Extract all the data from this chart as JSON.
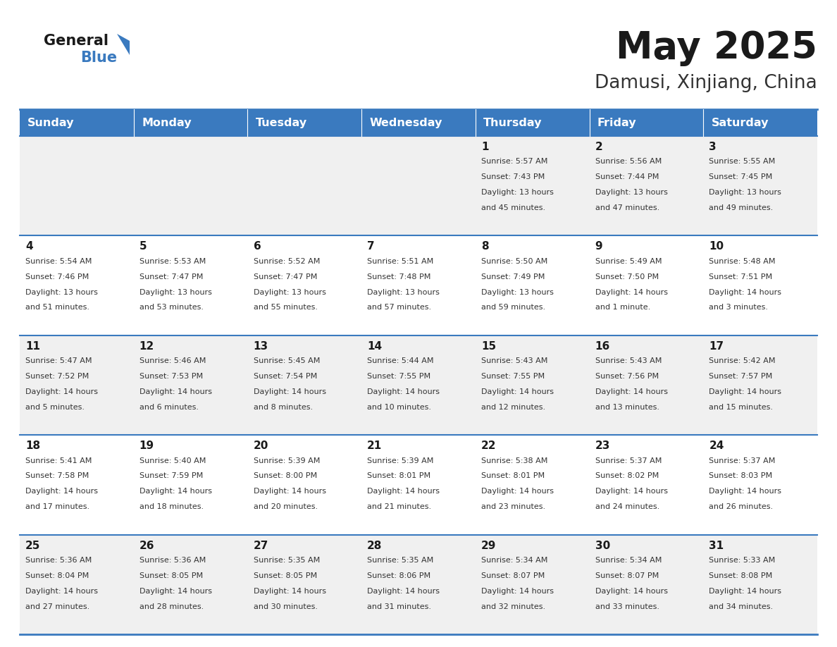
{
  "title": "May 2025",
  "subtitle": "Damusi, Xinjiang, China",
  "header_bg": "#3a7abf",
  "header_text": "#ffffff",
  "row_bg_light": "#f0f0f0",
  "row_bg_white": "#ffffff",
  "border_color": "#3a7abf",
  "day_headers": [
    "Sunday",
    "Monday",
    "Tuesday",
    "Wednesday",
    "Thursday",
    "Friday",
    "Saturday"
  ],
  "title_color": "#1a1a1a",
  "subtitle_color": "#333333",
  "number_color": "#1a1a1a",
  "text_color": "#333333",
  "days": [
    {
      "day": 1,
      "col": 4,
      "row": 0,
      "sunrise": "5:57 AM",
      "sunset": "7:43 PM",
      "daylight_h": "13 hours",
      "daylight_m": "and 45 minutes."
    },
    {
      "day": 2,
      "col": 5,
      "row": 0,
      "sunrise": "5:56 AM",
      "sunset": "7:44 PM",
      "daylight_h": "13 hours",
      "daylight_m": "and 47 minutes."
    },
    {
      "day": 3,
      "col": 6,
      "row": 0,
      "sunrise": "5:55 AM",
      "sunset": "7:45 PM",
      "daylight_h": "13 hours",
      "daylight_m": "and 49 minutes."
    },
    {
      "day": 4,
      "col": 0,
      "row": 1,
      "sunrise": "5:54 AM",
      "sunset": "7:46 PM",
      "daylight_h": "13 hours",
      "daylight_m": "and 51 minutes."
    },
    {
      "day": 5,
      "col": 1,
      "row": 1,
      "sunrise": "5:53 AM",
      "sunset": "7:47 PM",
      "daylight_h": "13 hours",
      "daylight_m": "and 53 minutes."
    },
    {
      "day": 6,
      "col": 2,
      "row": 1,
      "sunrise": "5:52 AM",
      "sunset": "7:47 PM",
      "daylight_h": "13 hours",
      "daylight_m": "and 55 minutes."
    },
    {
      "day": 7,
      "col": 3,
      "row": 1,
      "sunrise": "5:51 AM",
      "sunset": "7:48 PM",
      "daylight_h": "13 hours",
      "daylight_m": "and 57 minutes."
    },
    {
      "day": 8,
      "col": 4,
      "row": 1,
      "sunrise": "5:50 AM",
      "sunset": "7:49 PM",
      "daylight_h": "13 hours",
      "daylight_m": "and 59 minutes."
    },
    {
      "day": 9,
      "col": 5,
      "row": 1,
      "sunrise": "5:49 AM",
      "sunset": "7:50 PM",
      "daylight_h": "14 hours",
      "daylight_m": "and 1 minute."
    },
    {
      "day": 10,
      "col": 6,
      "row": 1,
      "sunrise": "5:48 AM",
      "sunset": "7:51 PM",
      "daylight_h": "14 hours",
      "daylight_m": "and 3 minutes."
    },
    {
      "day": 11,
      "col": 0,
      "row": 2,
      "sunrise": "5:47 AM",
      "sunset": "7:52 PM",
      "daylight_h": "14 hours",
      "daylight_m": "and 5 minutes."
    },
    {
      "day": 12,
      "col": 1,
      "row": 2,
      "sunrise": "5:46 AM",
      "sunset": "7:53 PM",
      "daylight_h": "14 hours",
      "daylight_m": "and 6 minutes."
    },
    {
      "day": 13,
      "col": 2,
      "row": 2,
      "sunrise": "5:45 AM",
      "sunset": "7:54 PM",
      "daylight_h": "14 hours",
      "daylight_m": "and 8 minutes."
    },
    {
      "day": 14,
      "col": 3,
      "row": 2,
      "sunrise": "5:44 AM",
      "sunset": "7:55 PM",
      "daylight_h": "14 hours",
      "daylight_m": "and 10 minutes."
    },
    {
      "day": 15,
      "col": 4,
      "row": 2,
      "sunrise": "5:43 AM",
      "sunset": "7:55 PM",
      "daylight_h": "14 hours",
      "daylight_m": "and 12 minutes."
    },
    {
      "day": 16,
      "col": 5,
      "row": 2,
      "sunrise": "5:43 AM",
      "sunset": "7:56 PM",
      "daylight_h": "14 hours",
      "daylight_m": "and 13 minutes."
    },
    {
      "day": 17,
      "col": 6,
      "row": 2,
      "sunrise": "5:42 AM",
      "sunset": "7:57 PM",
      "daylight_h": "14 hours",
      "daylight_m": "and 15 minutes."
    },
    {
      "day": 18,
      "col": 0,
      "row": 3,
      "sunrise": "5:41 AM",
      "sunset": "7:58 PM",
      "daylight_h": "14 hours",
      "daylight_m": "and 17 minutes."
    },
    {
      "day": 19,
      "col": 1,
      "row": 3,
      "sunrise": "5:40 AM",
      "sunset": "7:59 PM",
      "daylight_h": "14 hours",
      "daylight_m": "and 18 minutes."
    },
    {
      "day": 20,
      "col": 2,
      "row": 3,
      "sunrise": "5:39 AM",
      "sunset": "8:00 PM",
      "daylight_h": "14 hours",
      "daylight_m": "and 20 minutes."
    },
    {
      "day": 21,
      "col": 3,
      "row": 3,
      "sunrise": "5:39 AM",
      "sunset": "8:01 PM",
      "daylight_h": "14 hours",
      "daylight_m": "and 21 minutes."
    },
    {
      "day": 22,
      "col": 4,
      "row": 3,
      "sunrise": "5:38 AM",
      "sunset": "8:01 PM",
      "daylight_h": "14 hours",
      "daylight_m": "and 23 minutes."
    },
    {
      "day": 23,
      "col": 5,
      "row": 3,
      "sunrise": "5:37 AM",
      "sunset": "8:02 PM",
      "daylight_h": "14 hours",
      "daylight_m": "and 24 minutes."
    },
    {
      "day": 24,
      "col": 6,
      "row": 3,
      "sunrise": "5:37 AM",
      "sunset": "8:03 PM",
      "daylight_h": "14 hours",
      "daylight_m": "and 26 minutes."
    },
    {
      "day": 25,
      "col": 0,
      "row": 4,
      "sunrise": "5:36 AM",
      "sunset": "8:04 PM",
      "daylight_h": "14 hours",
      "daylight_m": "and 27 minutes."
    },
    {
      "day": 26,
      "col": 1,
      "row": 4,
      "sunrise": "5:36 AM",
      "sunset": "8:05 PM",
      "daylight_h": "14 hours",
      "daylight_m": "and 28 minutes."
    },
    {
      "day": 27,
      "col": 2,
      "row": 4,
      "sunrise": "5:35 AM",
      "sunset": "8:05 PM",
      "daylight_h": "14 hours",
      "daylight_m": "and 30 minutes."
    },
    {
      "day": 28,
      "col": 3,
      "row": 4,
      "sunrise": "5:35 AM",
      "sunset": "8:06 PM",
      "daylight_h": "14 hours",
      "daylight_m": "and 31 minutes."
    },
    {
      "day": 29,
      "col": 4,
      "row": 4,
      "sunrise": "5:34 AM",
      "sunset": "8:07 PM",
      "daylight_h": "14 hours",
      "daylight_m": "and 32 minutes."
    },
    {
      "day": 30,
      "col": 5,
      "row": 4,
      "sunrise": "5:34 AM",
      "sunset": "8:07 PM",
      "daylight_h": "14 hours",
      "daylight_m": "and 33 minutes."
    },
    {
      "day": 31,
      "col": 6,
      "row": 4,
      "sunrise": "5:33 AM",
      "sunset": "8:08 PM",
      "daylight_h": "14 hours",
      "daylight_m": "and 34 minutes."
    }
  ]
}
